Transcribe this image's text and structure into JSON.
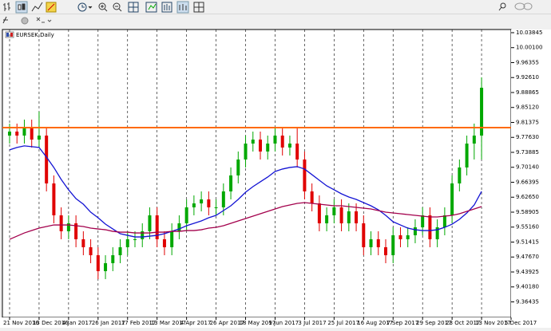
{
  "chart_data": {
    "type": "candlestick",
    "title": "EURSEK,Daily",
    "categories": [
      "21 Nov 2016",
      null,
      null,
      null,
      "13 Dec 2016",
      null,
      null,
      null,
      "4 Jan 2017",
      null,
      null,
      null,
      "26 Jan 2017",
      null,
      null,
      null,
      "17 Feb 2017",
      null,
      null,
      null,
      "13 Mar 2017",
      null,
      null,
      null,
      "4 Apr 2017",
      null,
      null,
      null,
      "26 Apr 2017",
      null,
      null,
      null,
      "18 May 2017",
      null,
      null,
      null,
      "9 Jun 2017",
      null,
      null,
      null,
      "3 Jul 2017",
      null,
      null,
      null,
      "25 Jul 2017",
      null,
      null,
      null,
      "16 Aug 2017",
      null,
      null,
      null,
      "7 Sep 2017",
      null,
      null,
      null,
      "29 Sep 2017",
      null,
      null,
      null,
      "23 Oct 2017",
      null,
      null,
      null,
      "13 Nov 2017",
      null,
      null,
      null,
      "5 Dec 2017"
    ],
    "candles": {
      "up_color": "#00a800",
      "down_color": "#e00000",
      "open": [
        9.7808,
        9.7908,
        9.7808,
        9.8008,
        9.7708,
        9.7808,
        9.661,
        9.5811,
        9.5412,
        9.5611,
        9.5212,
        9.5012,
        9.4812,
        9.4413,
        9.4613,
        9.4812,
        9.5012,
        9.5212,
        9.5212,
        9.5412,
        9.5811,
        9.5212,
        9.5012,
        9.5412,
        9.5611,
        9.6011,
        9.611,
        9.621,
        9.6011,
        9.6011,
        9.641,
        9.681,
        9.7209,
        9.7608,
        9.7708,
        9.7409,
        9.7608,
        9.7808,
        9.7509,
        9.7608,
        9.7209,
        9.641,
        9.611,
        9.5611,
        9.5811,
        9.6011,
        9.5611,
        9.5911,
        9.5611,
        9.5012,
        9.5212,
        9.5012,
        9.4812,
        9.5312,
        9.5212,
        9.5312,
        9.5511,
        9.5811,
        9.5212,
        9.5511,
        9.5811,
        9.661,
        9.7009,
        9.7608,
        9.7808,
        null,
        null,
        null,
        null
      ],
      "high": [
        9.8108,
        9.8108,
        9.8208,
        9.8208,
        9.8408,
        9.8008,
        9.681,
        9.6011,
        9.5811,
        9.5811,
        9.5412,
        9.5212,
        9.5012,
        9.4813,
        9.5012,
        9.5212,
        9.5412,
        9.5412,
        9.5612,
        9.6011,
        9.6011,
        9.5412,
        9.5612,
        9.5811,
        9.6211,
        9.631,
        9.641,
        9.641,
        9.6211,
        9.661,
        9.701,
        9.7409,
        9.7808,
        9.7908,
        9.7908,
        9.7808,
        9.8008,
        9.8008,
        9.7808,
        9.8008,
        9.7409,
        9.661,
        9.631,
        9.6011,
        9.6211,
        9.6211,
        9.6111,
        9.6111,
        9.5811,
        9.5412,
        9.5412,
        9.5212,
        9.5512,
        9.5512,
        9.5512,
        9.5711,
        9.6011,
        9.6011,
        9.5711,
        9.6011,
        9.681,
        9.7209,
        9.7808,
        9.8108,
        9.9266,
        null,
        null,
        null,
        null
      ],
      "low": [
        9.7608,
        9.7608,
        9.7608,
        9.7508,
        9.7508,
        9.641,
        9.5611,
        9.5212,
        9.5212,
        9.5012,
        9.4812,
        9.4612,
        9.4213,
        9.4213,
        9.4413,
        9.4612,
        9.4812,
        9.5012,
        9.5012,
        9.5212,
        9.5012,
        9.4812,
        9.4812,
        9.5212,
        9.5411,
        9.5811,
        9.591,
        9.5811,
        9.5811,
        9.5811,
        9.621,
        9.661,
        9.7009,
        9.7408,
        9.7209,
        9.7209,
        9.7408,
        9.7309,
        9.7309,
        9.7009,
        9.621,
        9.591,
        9.5411,
        9.5411,
        9.5611,
        9.5411,
        9.5411,
        9.5411,
        9.4812,
        9.4812,
        9.4812,
        9.4612,
        9.4612,
        9.5012,
        9.5012,
        9.5112,
        9.5311,
        9.5012,
        9.5012,
        9.5311,
        9.5611,
        9.641,
        9.681,
        9.7209,
        9.7209,
        null,
        null,
        null,
        null
      ],
      "close": [
        9.7908,
        9.7808,
        9.8008,
        9.7708,
        9.7808,
        9.661,
        9.5811,
        9.5412,
        9.5611,
        9.5212,
        9.5012,
        9.4812,
        9.4413,
        9.4613,
        9.4812,
        9.5012,
        9.5212,
        9.5212,
        9.5412,
        9.5811,
        9.5212,
        9.5012,
        9.5412,
        9.5611,
        9.6011,
        9.611,
        9.621,
        9.6011,
        9.6011,
        9.641,
        9.681,
        9.7209,
        9.7608,
        9.7708,
        9.7409,
        9.7608,
        9.7808,
        9.7509,
        9.7608,
        9.7209,
        9.641,
        9.611,
        9.5611,
        9.5811,
        9.6011,
        9.5611,
        9.5911,
        9.5611,
        9.5012,
        9.5212,
        9.5012,
        9.4812,
        9.5312,
        9.5212,
        9.5312,
        9.5511,
        9.5811,
        9.5212,
        9.5511,
        9.5811,
        9.661,
        9.7009,
        9.7608,
        9.7808,
        9.9006,
        null,
        null,
        null,
        null
      ]
    },
    "lines": [
      {
        "color": "#1414d4",
        "values": [
          9.745,
          9.751,
          9.755,
          9.753,
          9.751,
          9.727,
          9.701,
          9.671,
          9.645,
          9.623,
          9.609,
          9.589,
          9.575,
          9.559,
          9.547,
          9.535,
          9.531,
          9.527,
          9.527,
          9.529,
          9.531,
          9.535,
          9.541,
          9.547,
          9.555,
          9.561,
          9.567,
          9.575,
          9.581,
          9.593,
          9.605,
          9.621,
          9.639,
          9.653,
          9.665,
          9.677,
          9.691,
          9.697,
          9.701,
          9.703,
          9.697,
          9.683,
          9.669,
          9.655,
          9.645,
          9.635,
          9.627,
          9.621,
          9.613,
          9.605,
          9.595,
          9.581,
          9.565,
          9.557,
          9.549,
          9.545,
          9.543,
          9.543,
          9.545,
          9.551,
          9.559,
          9.571,
          9.587,
          9.607,
          9.641,
          null,
          null,
          null,
          null
        ]
      },
      {
        "color": "#a3004c",
        "values": [
          9.521,
          9.529,
          9.537,
          9.543,
          9.549,
          9.553,
          9.557,
          9.557,
          9.557,
          9.555,
          9.553,
          9.549,
          9.547,
          9.545,
          9.541,
          9.539,
          9.539,
          9.537,
          9.537,
          9.537,
          9.539,
          9.539,
          9.541,
          9.541,
          9.543,
          9.543,
          9.545,
          9.549,
          9.551,
          9.555,
          9.561,
          9.567,
          9.573,
          9.579,
          9.585,
          9.591,
          9.597,
          9.603,
          9.607,
          9.611,
          9.613,
          9.611,
          9.609,
          9.607,
          9.605,
          9.605,
          9.603,
          9.601,
          9.599,
          9.597,
          9.593,
          9.589,
          9.587,
          9.585,
          9.583,
          9.581,
          9.579,
          9.577,
          9.577,
          9.579,
          9.581,
          9.585,
          9.591,
          9.597,
          9.603,
          null,
          null,
          null,
          null
        ]
      }
    ],
    "hline": {
      "value": 9.8008,
      "color": "#ff6a00"
    },
    "ylim": [
      9.3254,
      10.0464
    ],
    "yticks": [
      10.03845,
      {
        "value": 10.001,
        "label": "10.00100"
      },
      9.96355,
      {
        "value": 9.9261,
        "label": "9.92610"
      },
      9.88865,
      {
        "value": 9.8512,
        "label": "9.85120"
      },
      9.81375,
      {
        "value": 9.7763,
        "label": "9.77630"
      },
      9.73885,
      {
        "value": 9.7014,
        "label": "9.70140"
      },
      9.66395,
      {
        "value": 9.6265,
        "label": "9.62650"
      },
      9.58905,
      {
        "value": 9.5516,
        "label": "9.55160"
      },
      9.51415,
      {
        "value": 9.4767,
        "label": "9.47670"
      },
      9.43925,
      {
        "value": 9.4018,
        "label": "9.40180"
      },
      9.36435
    ],
    "grid": true
  }
}
